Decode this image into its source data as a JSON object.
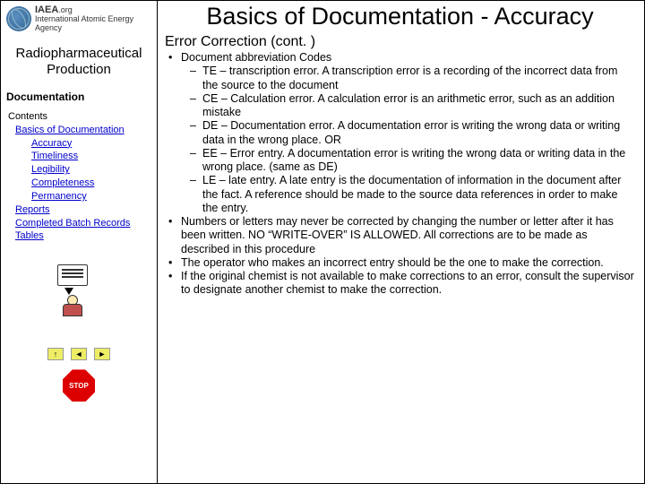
{
  "logo": {
    "org": "IAEA",
    "domain": ".org",
    "tagline": "International Atomic Energy Agency"
  },
  "sidebar": {
    "section": "Radiopharmaceutical Production",
    "doc_label": "Documentation",
    "nav": {
      "contents": "Contents",
      "basics": "Basics of Documentation",
      "accuracy": "Accuracy",
      "timeliness": "Timeliness",
      "legibility": "Legibility",
      "completeness": "Completeness",
      "permanency": "Permanency",
      "reports": "Reports",
      "batch": "Completed Batch Records",
      "tables": "Tables"
    },
    "stop": "STOP"
  },
  "main": {
    "title": "Basics of Documentation - Accuracy",
    "subtitle": "Error Correction (cont. )",
    "b1": "Document abbreviation Codes",
    "b1a": "TE – transcription error.  A transcription error is a recording of the incorrect data from the source to the document",
    "b1b": "CE – Calculation error.  A calculation error is an arithmetic error, such as an addition mistake",
    "b1c": "DE – Documentation error.  A documentation error is writing the wrong data or writing data in the wrong place. OR",
    "b1d": "EE – Error entry.  A documentation error is writing the wrong data or writing data in the wrong place. (same as DE)",
    "b1e": "LE – late entry.  A late entry is the documentation of information in the document after the fact.  A reference should be made to the source data references in order to make the entry.",
    "b2": "Numbers or letters may never be corrected by changing the number or letter after it has been written.  NO “WRITE-OVER” IS ALLOWED.  All corrections are to be made as described in this procedure",
    "b3": "The operator who makes an incorrect entry should be the one to make the correction.",
    "b4": "If the original chemist is not available to make corrections to an error, consult the supervisor to designate another chemist to make the correction."
  },
  "colors": {
    "link": "#0000cc",
    "stop": "#d00000"
  }
}
